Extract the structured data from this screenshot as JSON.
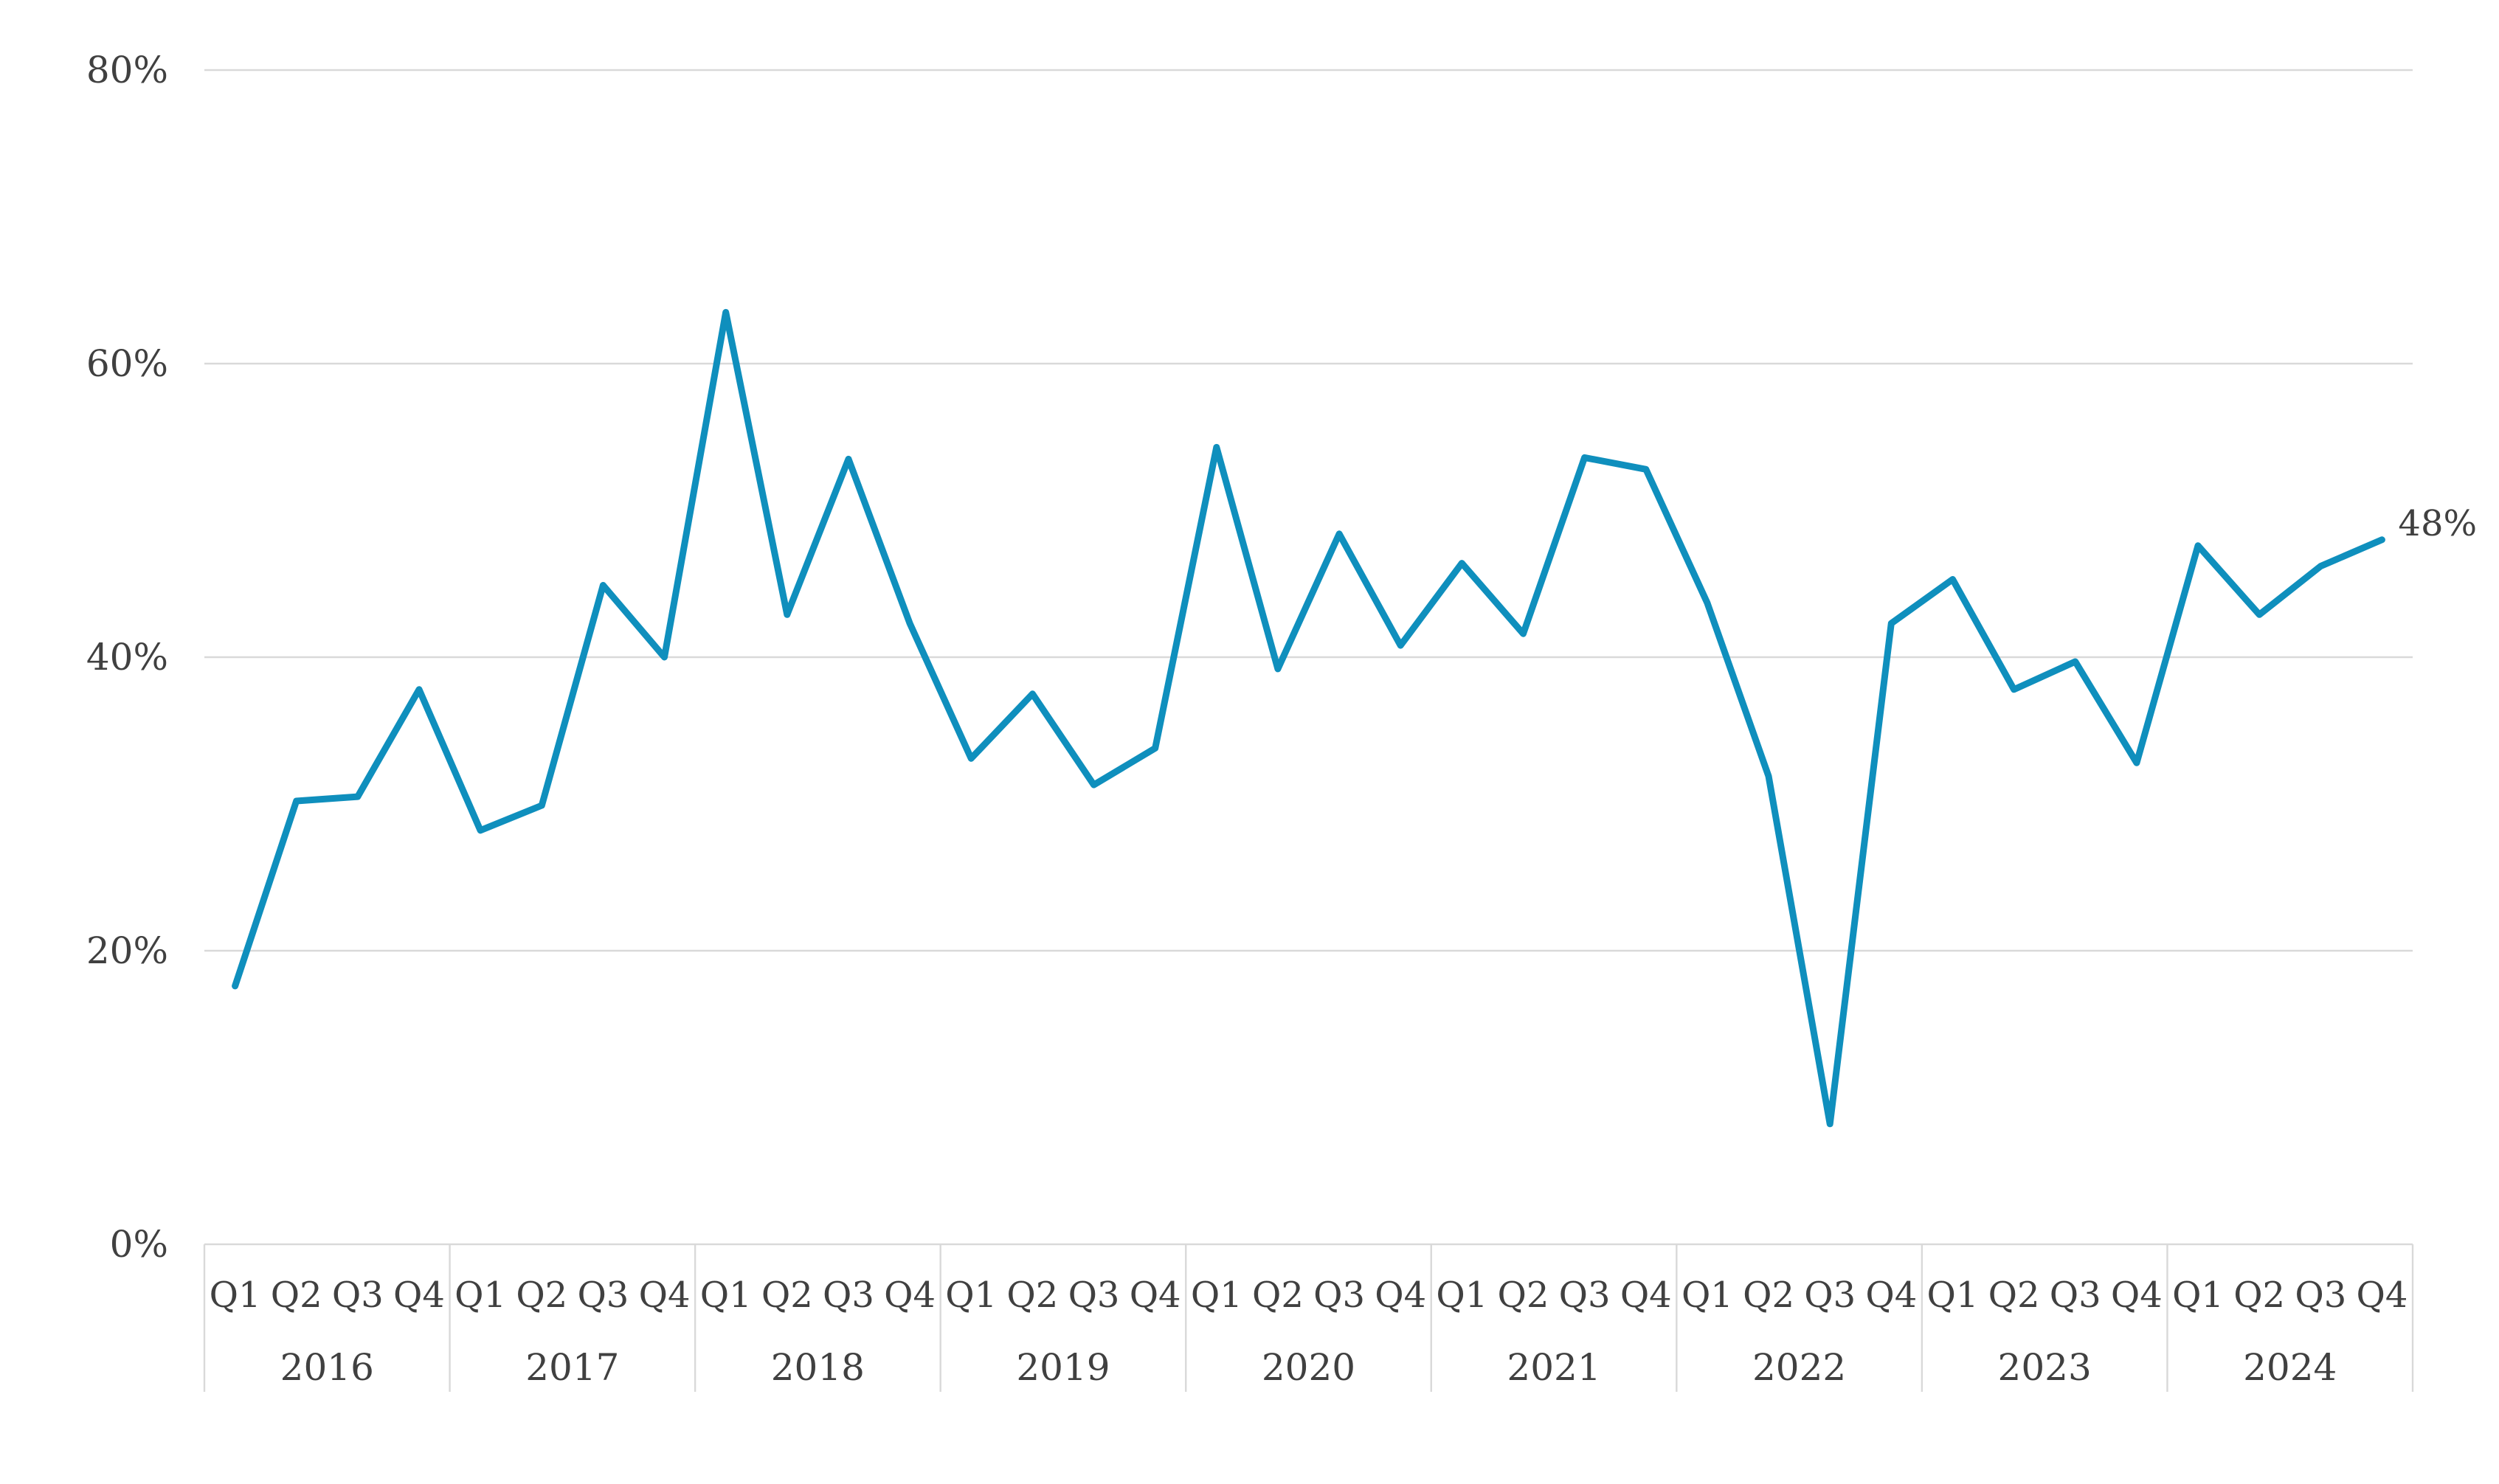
{
  "chart_data": {
    "type": "line",
    "title": "",
    "xlabel": "",
    "ylabel": "",
    "ylim": [
      0,
      80
    ],
    "yticks": [
      0,
      20,
      40,
      60,
      80
    ],
    "ytick_labels": [
      "0%",
      "20%",
      "40%",
      "60%",
      "80%"
    ],
    "grid": "horizontal",
    "legend": "none",
    "colors": {
      "line": "#0f8fbd",
      "grid": "#d9d9d9",
      "text": "#404040"
    },
    "years": [
      "2016",
      "2017",
      "2018",
      "2019",
      "2020",
      "2021",
      "2022",
      "2023",
      "2024"
    ],
    "quarters": [
      "Q1",
      "Q2",
      "Q3",
      "Q4"
    ],
    "series": [
      {
        "values": [
          17.6,
          30.2,
          30.5,
          37.8,
          28.2,
          29.9,
          44.9,
          40.0,
          63.5,
          42.9,
          53.5,
          42.3,
          33.1,
          37.5,
          31.3,
          33.8,
          54.3,
          39.2,
          48.4,
          40.8,
          46.4,
          41.6,
          53.6,
          52.8,
          43.7,
          31.9,
          8.2,
          42.3,
          45.3,
          37.8,
          39.7,
          32.8,
          47.6,
          42.9,
          46.2,
          48.0
        ]
      }
    ],
    "end_label": "48%"
  }
}
